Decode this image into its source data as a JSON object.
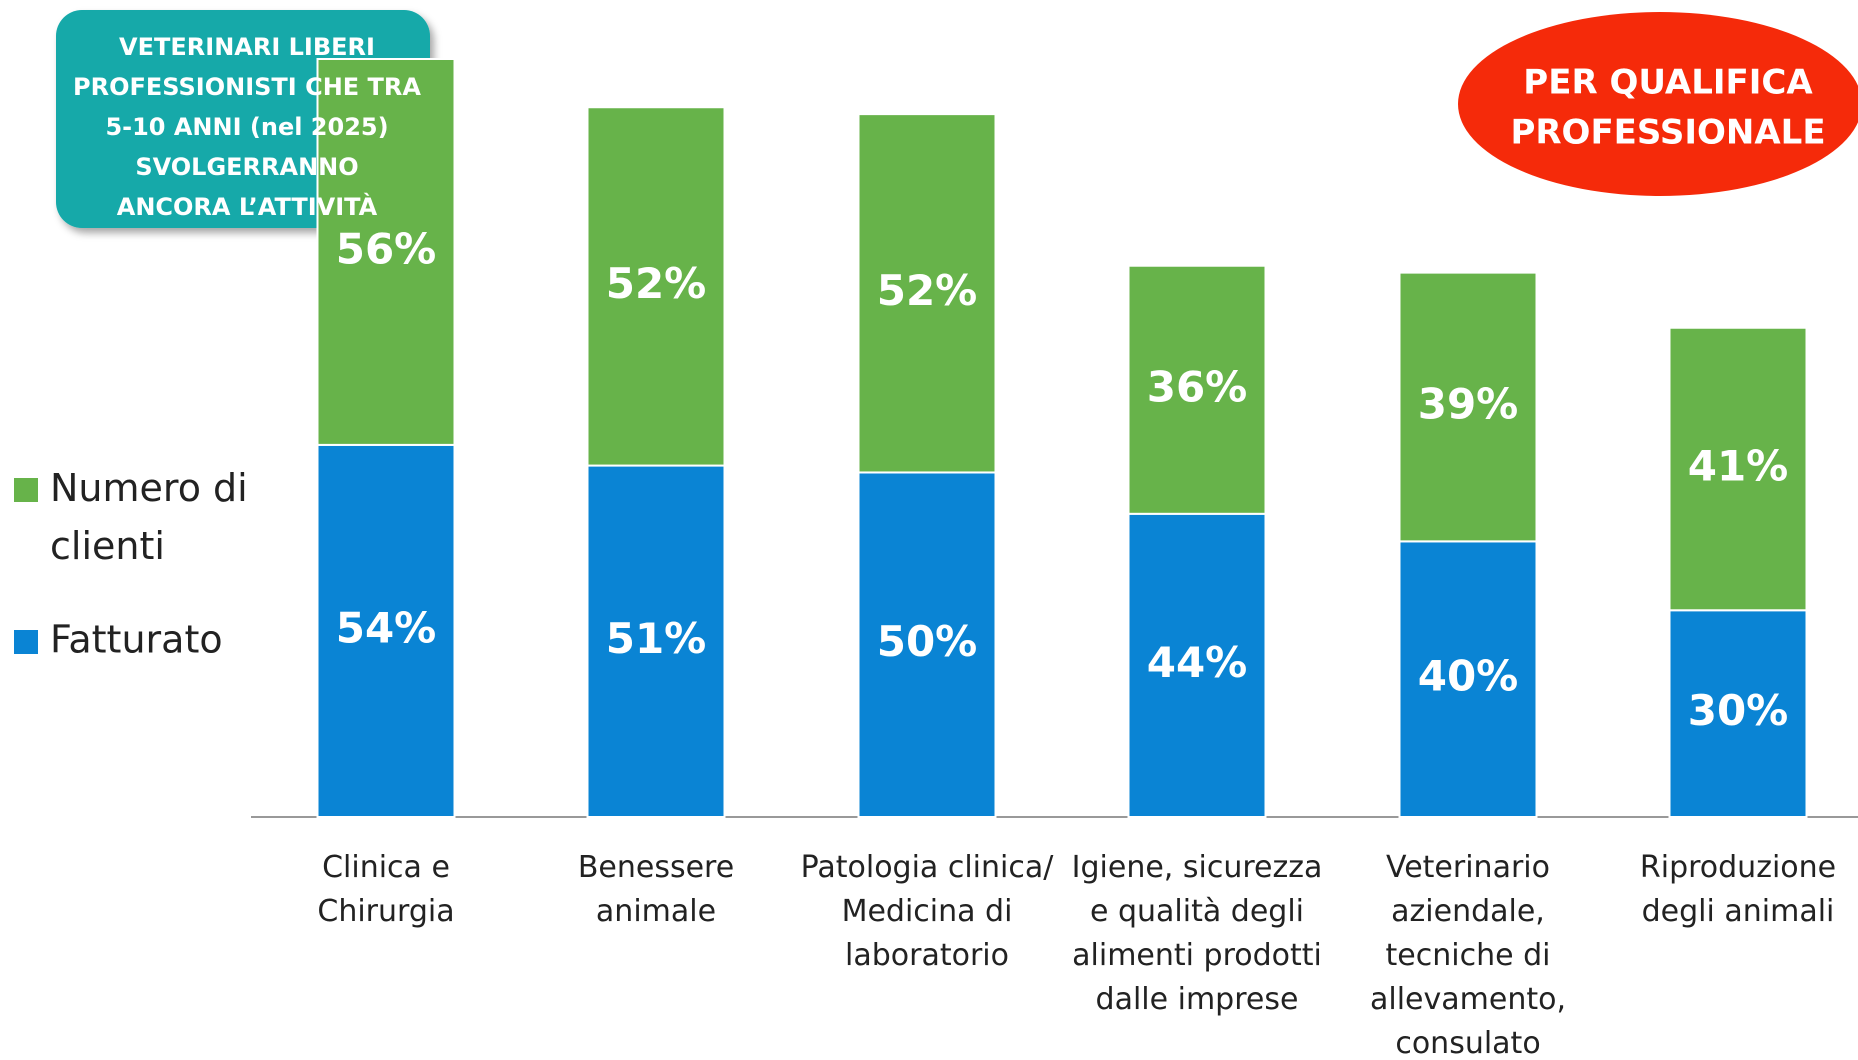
{
  "chart_data": {
    "type": "stacked_bar",
    "info_box": [
      "VETERINARI LIBERI",
      "PROFESSIONISTI CHE TRA",
      "5-10 ANNI (nel 2025)",
      "SVOLGERRANNO",
      "ANCORA L’ATTIVITÀ"
    ],
    "badge": [
      "PER QUALIFICA",
      "PROFESSIONALE"
    ],
    "categories": [
      "Clinica e\nChirurgia",
      "Benessere\nanimale",
      "Patologia clinica/\nMedicina di\nlaboratorio",
      "Igiene, sicurezza\ne qualità degli\nalimenti prodotti\ndalle imprese",
      "Veterinario\naziendale,\ntecniche di\nallevamento,\nconsulato",
      "Riproduzione\ndegli animali"
    ],
    "series": [
      {
        "name": "Fatturato",
        "color": "#0a84d4",
        "values": [
          54,
          51,
          50,
          44,
          40,
          30
        ],
        "value_labels": [
          "54%",
          "51%",
          "50%",
          "44%",
          "40%",
          "30%"
        ]
      },
      {
        "name": "Numero di\nclienti",
        "color": "#67b34a",
        "values": [
          56,
          52,
          52,
          36,
          39,
          41
        ],
        "value_labels": [
          "56%",
          "52%",
          "52%",
          "36%",
          "39%",
          "41%"
        ]
      }
    ]
  }
}
